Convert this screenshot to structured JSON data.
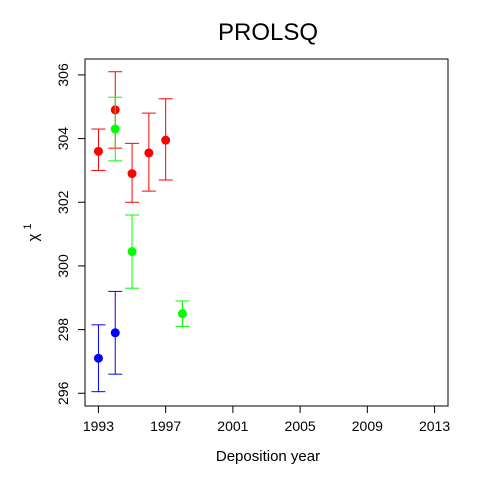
{
  "chart_data": {
    "type": "scatter",
    "title": "PROLSQ",
    "xlabel": "Deposition year",
    "ylabel_main": "χ",
    "ylabel_sup": "1",
    "xlim": [
      1992.2,
      2013.8
    ],
    "ylim": [
      295.6,
      306.5
    ],
    "xticks": [
      1993,
      1997,
      2001,
      2005,
      2009,
      2013
    ],
    "yticks": [
      296,
      298,
      300,
      302,
      304,
      306
    ],
    "grid": false,
    "error_bars": true,
    "series": [
      {
        "color": "#ff0000",
        "points": [
          {
            "x": 1993,
            "y": 303.6,
            "lo": 303.0,
            "hi": 304.3
          },
          {
            "x": 1994,
            "y": 304.9,
            "lo": 303.7,
            "hi": 306.1
          },
          {
            "x": 1995,
            "y": 302.9,
            "lo": 302.0,
            "hi": 303.85
          },
          {
            "x": 1996,
            "y": 303.55,
            "lo": 302.35,
            "hi": 304.8
          },
          {
            "x": 1997,
            "y": 303.95,
            "lo": 302.7,
            "hi": 305.25
          }
        ]
      },
      {
        "color": "#00ff00",
        "points": [
          {
            "x": 1994,
            "y": 304.3,
            "lo": 303.3,
            "hi": 305.3
          },
          {
            "x": 1995,
            "y": 300.45,
            "lo": 299.3,
            "hi": 301.6
          },
          {
            "x": 1998,
            "y": 298.5,
            "lo": 298.1,
            "hi": 298.9
          }
        ]
      },
      {
        "color": "#0000ff",
        "points": [
          {
            "x": 1993,
            "y": 297.1,
            "lo": 296.05,
            "hi": 298.15
          },
          {
            "x": 1994,
            "y": 297.9,
            "lo": 296.6,
            "hi": 299.2
          }
        ]
      }
    ]
  }
}
